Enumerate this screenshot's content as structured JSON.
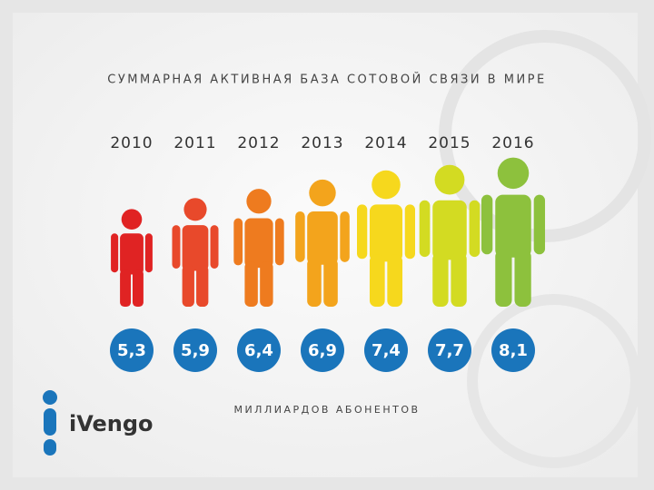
{
  "chart_data": {
    "type": "pictogram",
    "title": "СУММАРНАЯ АКТИВНАЯ БАЗА СОТОВОЙ СВЯЗИ В МИРЕ",
    "categories": [
      "2010",
      "2011",
      "2012",
      "2013",
      "2014",
      "2015",
      "2016"
    ],
    "values": [
      5.3,
      5.9,
      6.4,
      6.9,
      7.4,
      7.7,
      8.1
    ],
    "value_labels": [
      "5,3",
      "5,9",
      "6,4",
      "6,9",
      "7,4",
      "7,7",
      "8,1"
    ],
    "colors": [
      "#e02323",
      "#e8492b",
      "#ee7b1f",
      "#f3a41c",
      "#f6d81d",
      "#d3db22",
      "#8dc13d"
    ],
    "label_color": "#1a75bb",
    "footnote": "МИЛЛИАРДОВ АБОНЕНТОВ"
  },
  "logo": "iVengo"
}
